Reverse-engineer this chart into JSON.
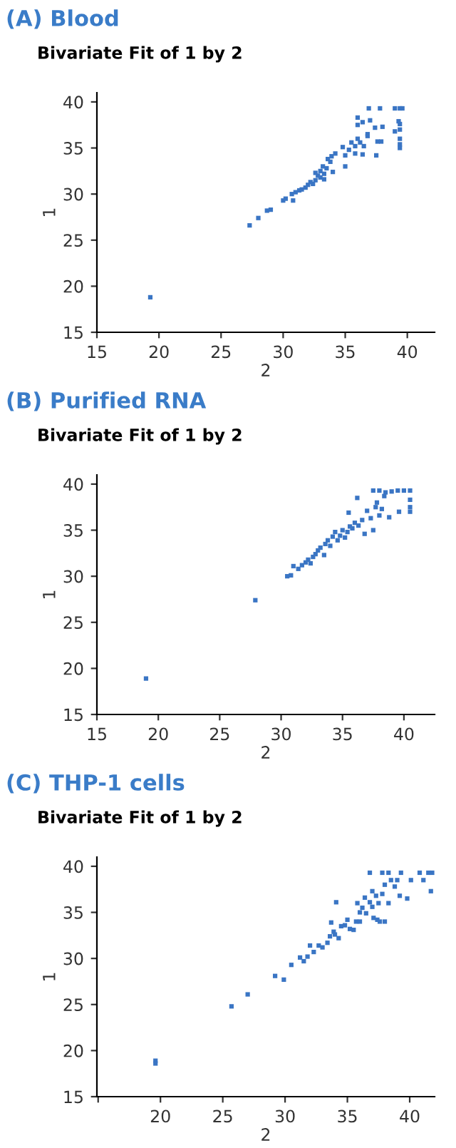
{
  "chart_data": [
    {
      "type": "scatter",
      "title": "(A) Blood",
      "subtitle": "Bivariate Fit of 1 by 2",
      "xlabel": "2",
      "ylabel": "1",
      "marker": "square",
      "grid": false,
      "xlim": [
        15,
        42.2
      ],
      "ylim": [
        15,
        41
      ],
      "xticks": [
        15,
        20,
        25,
        30,
        35,
        40
      ],
      "yticks": [
        15,
        20,
        25,
        30,
        35,
        40
      ],
      "series": [
        {
          "color": "#3a75c4",
          "x": [
            19.3,
            27.3,
            28,
            28.7,
            29,
            30,
            30.2,
            30.7,
            30.8,
            31,
            31.3,
            31.5,
            31.8,
            32,
            32.2,
            32.4,
            32.6,
            32.6,
            32.8,
            33,
            33,
            33.2,
            33.3,
            33.3,
            33.5,
            33.6,
            33.8,
            33.9,
            34,
            34.2,
            34.8,
            35,
            35,
            35.3,
            35.5,
            35.8,
            35.8,
            36,
            36,
            36,
            36.2,
            36.4,
            36.4,
            36.5,
            36.8,
            36.8,
            36.9,
            37,
            37.4,
            37.5,
            37.6,
            37.8,
            38,
            37.9,
            39,
            39,
            39.4,
            39.4,
            39.4,
            39.4,
            39.4,
            39.4,
            39.6,
            39.3
          ],
          "values": [
            18.8,
            26.6,
            27.4,
            28.2,
            28.3,
            29.3,
            29.5,
            30,
            29.3,
            30.2,
            30.4,
            30.5,
            30.7,
            31,
            31.3,
            31.1,
            31.5,
            32.3,
            32,
            32.5,
            31.8,
            33,
            32.2,
            31.6,
            32.8,
            33.8,
            33.5,
            34.1,
            32.4,
            34.4,
            35.1,
            34.2,
            33,
            34.8,
            35.6,
            35.2,
            34.4,
            36,
            37.5,
            38.3,
            35.6,
            37.8,
            34.3,
            35.2,
            36.3,
            36.5,
            39.3,
            38,
            37.2,
            34.2,
            35.7,
            39.3,
            37.3,
            35.7,
            39.3,
            36.8,
            39.3,
            37.6,
            37,
            36,
            35.4,
            35,
            39.3,
            37.9
          ]
        }
      ]
    },
    {
      "type": "scatter",
      "title": "(B) Purified RNA",
      "subtitle": "Bivariate Fit of 1 by 2",
      "xlabel": "2",
      "ylabel": "1",
      "marker": "square",
      "grid": false,
      "xlim": [
        15,
        42.5
      ],
      "ylim": [
        15,
        41
      ],
      "xticks": [
        15,
        20,
        25,
        30,
        35,
        40
      ],
      "yticks": [
        15,
        20,
        25,
        30,
        35,
        40
      ],
      "series": [
        {
          "color": "#3a75c4",
          "x": [
            19,
            27.9,
            30.5,
            30.8,
            31,
            31.4,
            31.7,
            32,
            32.2,
            32.4,
            32.6,
            32.8,
            33,
            33.2,
            33.5,
            33.6,
            33.8,
            34,
            34.2,
            34.4,
            34.6,
            34.8,
            35,
            35.2,
            35.4,
            35.6,
            35.5,
            35.8,
            36,
            36.2,
            36.3,
            36.6,
            36.8,
            37,
            37.3,
            37.5,
            37.5,
            37.8,
            38,
            38,
            38.2,
            38.4,
            38.5,
            38.8,
            39,
            39.5,
            39.6,
            40,
            40.5,
            40.5,
            40.5,
            40.5,
            37.7
          ],
          "values": [
            18.9,
            27.4,
            30,
            30.1,
            31.1,
            30.8,
            31.2,
            31.5,
            31.8,
            31.4,
            32.1,
            32.4,
            32.8,
            33.1,
            32.3,
            33.5,
            33.9,
            33.3,
            34.3,
            34.8,
            33.9,
            34.4,
            35,
            34.2,
            34.8,
            35.4,
            36.9,
            35.2,
            35.8,
            38.5,
            35.5,
            36.1,
            34.6,
            37.1,
            36.3,
            35,
            39.3,
            38,
            39.3,
            36.6,
            37.3,
            38.7,
            39.1,
            36.4,
            39.2,
            39.3,
            37,
            39.3,
            39.3,
            38.3,
            37.5,
            37,
            37.5
          ]
        }
      ]
    },
    {
      "type": "scatter",
      "title": "(C) THP-1 cells",
      "subtitle": "Bivariate Fit of 1 by 2",
      "xlabel": "2",
      "ylabel": "1",
      "marker": "square",
      "grid": false,
      "xlim": [
        14.9,
        42
      ],
      "ylim": [
        15,
        41
      ],
      "xticks": [
        {
          "value": 15,
          "label": null
        },
        20,
        25,
        30,
        35,
        40
      ],
      "yticks": [
        15,
        20,
        25,
        30,
        35,
        40
      ],
      "series": [
        {
          "color": "#3a75c4",
          "x": [
            19.6,
            19.6,
            25.7,
            27,
            29.2,
            29.9,
            30.5,
            31.2,
            31.5,
            31.8,
            32,
            32.3,
            32.7,
            33,
            33.4,
            33.6,
            33.7,
            33.9,
            34,
            34.1,
            34.3,
            34.5,
            34.8,
            35,
            35.2,
            35.5,
            35.7,
            35.8,
            36,
            36,
            36.2,
            36.4,
            36.5,
            36.8,
            36.8,
            37,
            37,
            37.1,
            37.3,
            37.4,
            37.5,
            37.6,
            37.8,
            37.8,
            38,
            38,
            38.3,
            38.3,
            38.5,
            38.8,
            39,
            39.3,
            39.2,
            39.8,
            40.1,
            40.8,
            41.1,
            41.5,
            41.7,
            41.8
          ],
          "values": [
            18.9,
            18.6,
            24.8,
            26.1,
            28.1,
            27.7,
            29.3,
            30.1,
            29.7,
            30.2,
            31.4,
            30.7,
            31.4,
            31.2,
            31.7,
            32.4,
            33.9,
            32.9,
            32.6,
            36.1,
            32.2,
            33.5,
            33.6,
            34.2,
            33.2,
            33.1,
            34,
            36,
            35,
            34,
            35.5,
            36.6,
            34.9,
            39.3,
            36.1,
            37.3,
            35.6,
            34.4,
            36.8,
            34.2,
            36,
            34,
            39.3,
            37,
            34,
            38,
            36,
            39.3,
            38.5,
            37.8,
            38.5,
            39.3,
            36.8,
            36.5,
            38.5,
            39.3,
            38.5,
            39.3,
            37.3,
            39.3
          ]
        }
      ]
    }
  ]
}
